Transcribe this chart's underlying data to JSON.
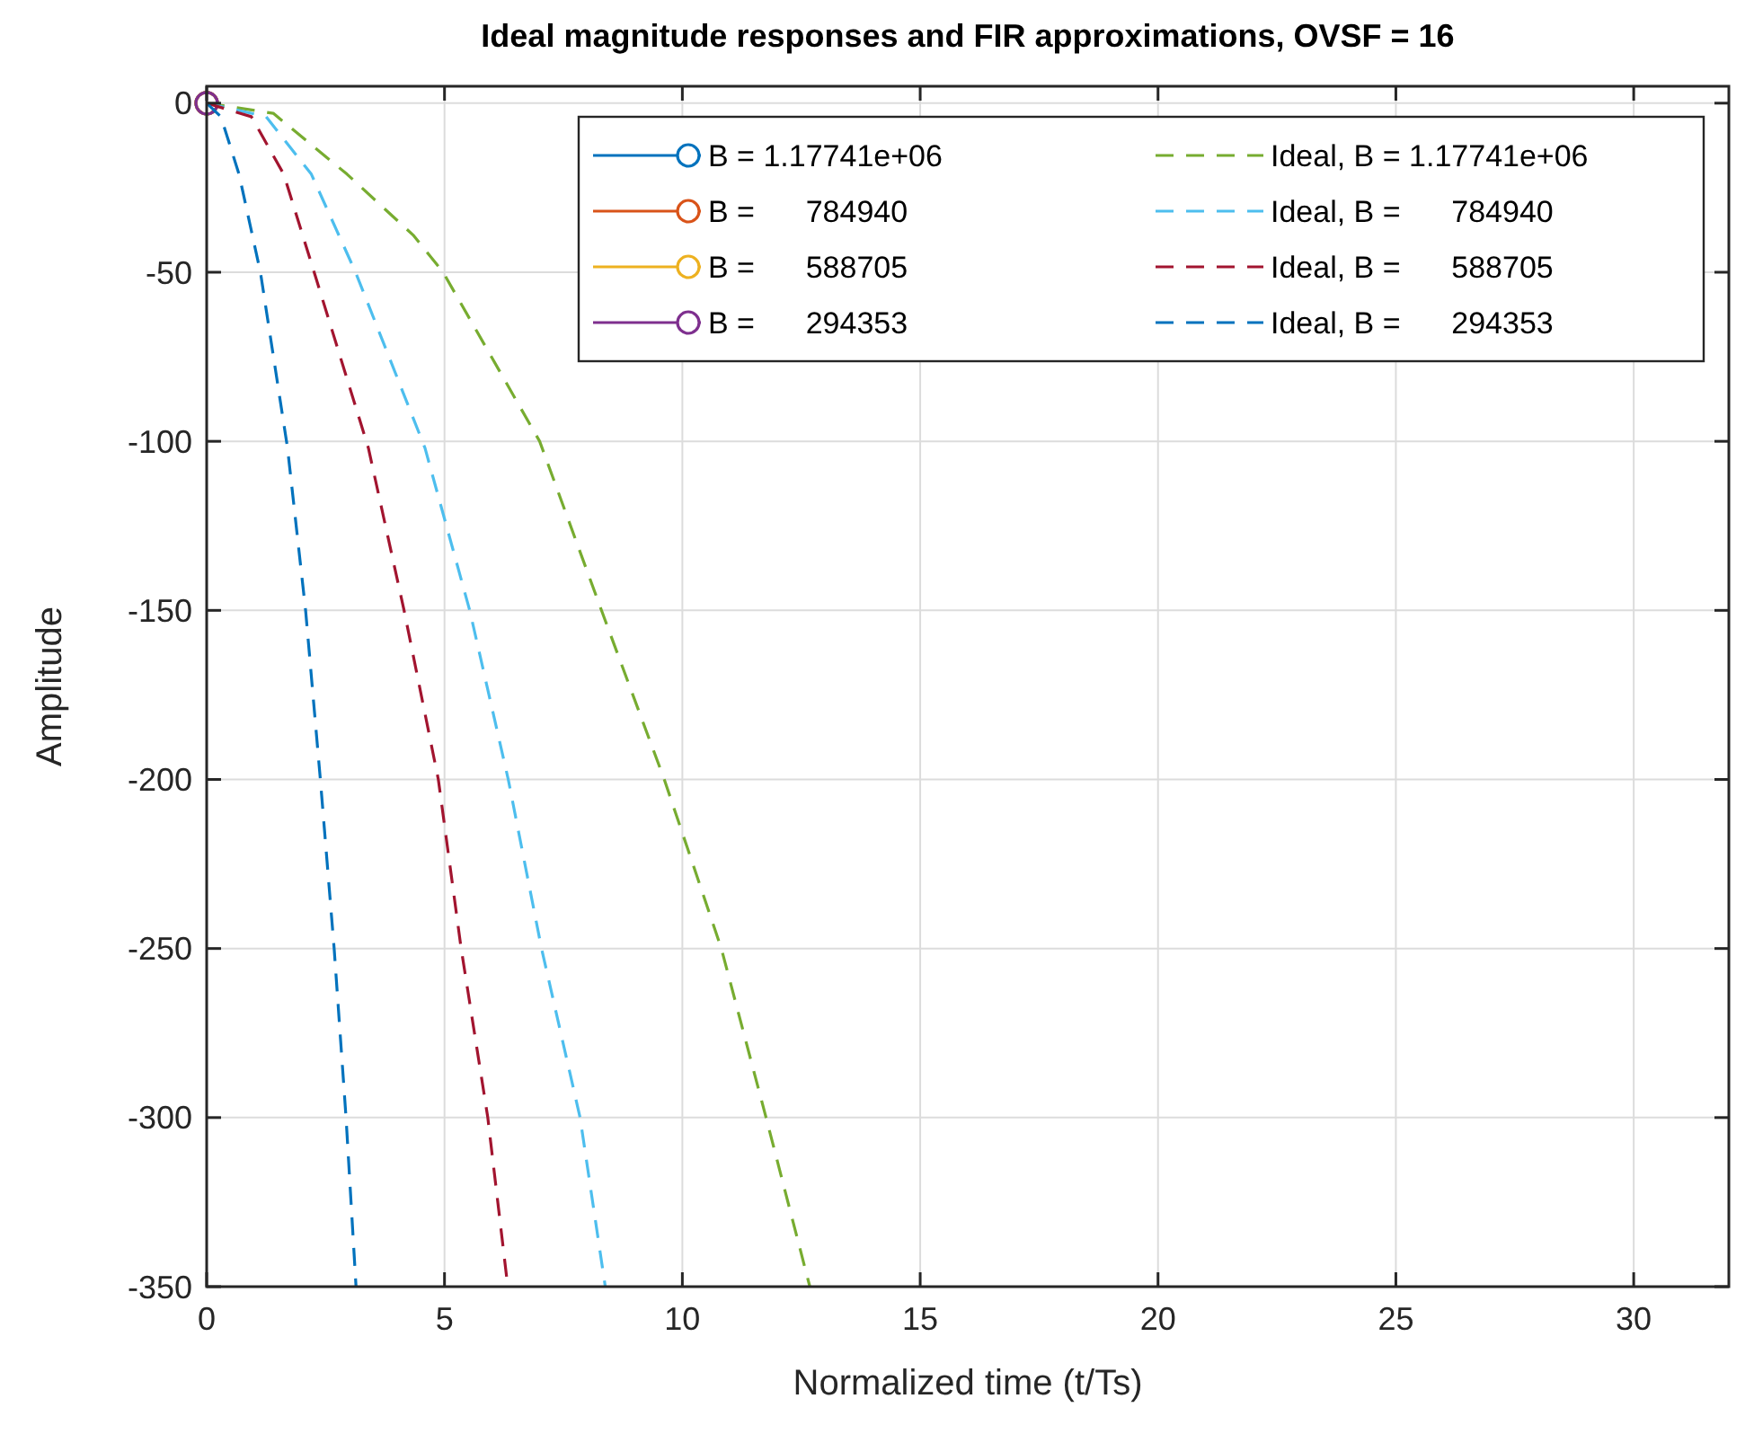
{
  "chart_data": {
    "type": "line",
    "title": "Ideal magnitude responses and FIR approximations, OVSF = 16",
    "xlabel": "Normalized time (t/Ts)",
    "ylabel": "Amplitude",
    "xlim": [
      0,
      32
    ],
    "ylim": [
      -350,
      5
    ],
    "xticks": [
      0,
      5,
      10,
      15,
      20,
      25,
      30
    ],
    "yticks": [
      -350,
      -300,
      -250,
      -200,
      -150,
      -100,
      -50,
      0
    ],
    "grid": true,
    "legend": "top right",
    "series": [
      {
        "name": "B = 1.17741e+06",
        "color": "#0072bd",
        "marker": "circle",
        "line_style": "solid",
        "x": [
          0
        ],
        "values": [
          0
        ]
      },
      {
        "name": "B =      784940",
        "color": "#d95319",
        "marker": "circle",
        "line_style": "solid",
        "x": [
          0
        ],
        "values": [
          0
        ]
      },
      {
        "name": "B =      588705",
        "color": "#edb120",
        "marker": "circle",
        "line_style": "solid",
        "x": [
          0
        ],
        "values": [
          0
        ]
      },
      {
        "name": "B =      294353",
        "color": "#7e2f8e",
        "marker": "circle",
        "line_style": "solid",
        "x": [
          0
        ],
        "values": [
          0
        ]
      },
      {
        "name": "Ideal, B = 1.17741e+06",
        "color": "#77ac30",
        "marker": "none",
        "line_style": "dashed",
        "x": [
          0,
          1.4,
          2.95,
          4.34,
          4.97,
          7.0,
          8.3,
          9.62,
          10.82,
          11.76,
          12.68
        ],
        "values": [
          0,
          -3,
          -21,
          -39,
          -50,
          -100,
          -150,
          -200,
          -250,
          -300,
          -350
        ]
      },
      {
        "name": "Ideal, B =      784940",
        "color": "#4dbeee",
        "marker": "none",
        "line_style": "dashed",
        "x": [
          0,
          1.25,
          2.2,
          3.13,
          4.59,
          5.53,
          6.34,
          7.04,
          7.85,
          8.38
        ],
        "values": [
          0,
          -4,
          -21,
          -50,
          -102,
          -150,
          -200,
          -250,
          -300,
          -350
        ]
      },
      {
        "name": "Ideal, B =      588705",
        "color": "#a2142f",
        "marker": "none",
        "line_style": "dashed",
        "x": [
          0,
          0.94,
          1.62,
          2.26,
          3.4,
          4.15,
          4.87,
          5.35,
          5.91,
          6.33
        ],
        "values": [
          0,
          -4,
          -21,
          -50,
          -102,
          -150,
          -200,
          -250,
          -300,
          -350
        ]
      },
      {
        "name": "Ideal, B =      294353",
        "color": "#0072bd",
        "marker": "none",
        "line_style": "dashed",
        "x": [
          0,
          0.3,
          0.68,
          1.13,
          1.7,
          2.08,
          2.39,
          2.68,
          2.93,
          3.14
        ],
        "values": [
          0,
          -4,
          -21,
          -50,
          -102,
          -150,
          -200,
          -250,
          -300,
          -350
        ]
      }
    ]
  }
}
